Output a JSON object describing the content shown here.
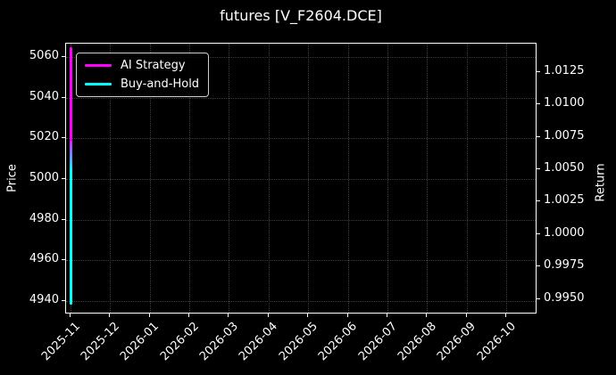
{
  "title": "futures [V_F2604.DCE]",
  "colors": {
    "background": "#000000",
    "text": "#ffffff",
    "spine": "#ffffff",
    "grid": "#3c3c3c",
    "ai_strategy": "#ff00ff",
    "buy_and_hold": "#00ffff",
    "legend_border": "#cfcfcf"
  },
  "legend": {
    "position": "upper left",
    "items": [
      {
        "label": "AI Strategy",
        "color": "#ff00ff"
      },
      {
        "label": "Buy-and-Hold",
        "color": "#00ffff"
      }
    ]
  },
  "chart_data": {
    "type": "line",
    "title": "futures [V_F2604.DCE]",
    "grid": "dotted",
    "background": "#000000",
    "x_axis": {
      "tick_labels": [
        "2025-11",
        "2025-12",
        "2026-01",
        "2026-02",
        "2026-03",
        "2026-04",
        "2026-05",
        "2026-06",
        "2026-07",
        "2026-08",
        "2026-09",
        "2026-10"
      ],
      "tick_rotation_deg": 45
    },
    "left_axis": {
      "label": "Price",
      "tick_labels": [
        "5060",
        "5040",
        "5020",
        "5000",
        "4980",
        "4960",
        "4940"
      ],
      "range": [
        4933.3,
        5066.7
      ]
    },
    "right_axis": {
      "label": "Return",
      "tick_labels": [
        "1.0125",
        "1.0100",
        "1.0075",
        "1.0050",
        "1.0025",
        "1.0000",
        "0.9975",
        "0.9950"
      ],
      "range": [
        0.9938,
        1.0147
      ]
    },
    "series": [
      {
        "name": "AI Strategy",
        "color": "#ff00ff",
        "axis": "right",
        "x": "2025-11",
        "appearance": "vertical line at left edge (all data within 2025-11)",
        "price_span": [
          5004,
          5065
        ],
        "fade_tail": true
      },
      {
        "name": "Buy-and-Hold",
        "color": "#00ffff",
        "axis": "left",
        "x": "2025-11",
        "appearance": "vertical line at left edge (all data within 2025-11)",
        "price_span": [
          4938,
          5019
        ],
        "fade_tail": false
      }
    ]
  }
}
